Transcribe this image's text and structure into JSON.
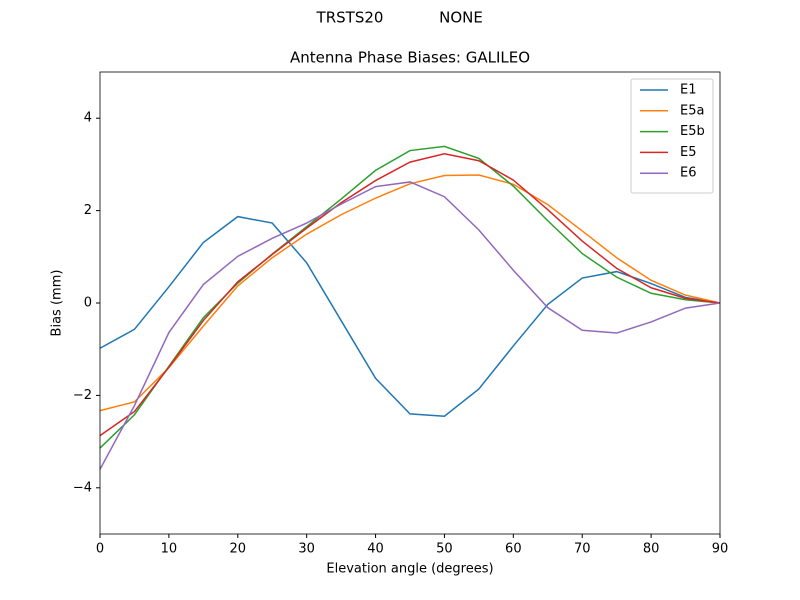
{
  "chart_data": {
    "type": "line",
    "suptitle": [
      "TRSTS20",
      "NONE"
    ],
    "title": "Antenna Phase Biases: GALILEO",
    "x_label": "Elevation angle (degrees)",
    "y_label": "Bias (mm)",
    "x": [
      0,
      5,
      10,
      15,
      20,
      25,
      30,
      35,
      40,
      45,
      50,
      55,
      60,
      65,
      70,
      75,
      80,
      85,
      90
    ],
    "series": [
      {
        "name": "E1",
        "color": "#1f77b4",
        "values": [
          -0.98,
          -0.57,
          0.35,
          1.31,
          1.87,
          1.73,
          0.87,
          -0.38,
          -1.63,
          -2.4,
          -2.45,
          -1.86,
          -0.93,
          -0.03,
          0.54,
          0.68,
          0.42,
          0.12,
          0
        ]
      },
      {
        "name": "E5a",
        "color": "#ff7f0e",
        "values": [
          -2.33,
          -2.14,
          -1.4,
          -0.5,
          0.37,
          0.98,
          1.49,
          1.91,
          2.27,
          2.58,
          2.76,
          2.77,
          2.57,
          2.13,
          1.56,
          0.98,
          0.49,
          0.17,
          0
        ]
      },
      {
        "name": "E5b",
        "color": "#2ca02c",
        "values": [
          -3.14,
          -2.42,
          -1.37,
          -0.32,
          0.43,
          1.06,
          1.65,
          2.25,
          2.87,
          3.3,
          3.39,
          3.13,
          2.53,
          1.78,
          1.07,
          0.56,
          0.21,
          0.07,
          0
        ]
      },
      {
        "name": "E5",
        "color": "#d62728",
        "values": [
          -2.87,
          -2.35,
          -1.39,
          -0.38,
          0.46,
          1.05,
          1.62,
          2.17,
          2.65,
          3.05,
          3.23,
          3.08,
          2.66,
          2.02,
          1.34,
          0.75,
          0.33,
          0.1,
          0
        ]
      },
      {
        "name": "E6",
        "color": "#9467bd",
        "values": [
          -3.6,
          -2.22,
          -0.64,
          0.4,
          1.01,
          1.4,
          1.73,
          2.14,
          2.52,
          2.62,
          2.3,
          1.58,
          0.71,
          -0.1,
          -0.59,
          -0.65,
          -0.41,
          -0.11,
          0
        ]
      }
    ],
    "xlim": [
      0,
      90
    ],
    "xticks": [
      0,
      10,
      20,
      30,
      40,
      50,
      60,
      70,
      80,
      90
    ],
    "ylim": [
      -5,
      5
    ],
    "yticks": [
      {
        "value": -4,
        "label": "−4"
      },
      {
        "value": -2,
        "label": "−2"
      },
      0,
      2,
      4
    ],
    "legend": "upper right",
    "grid": false
  }
}
